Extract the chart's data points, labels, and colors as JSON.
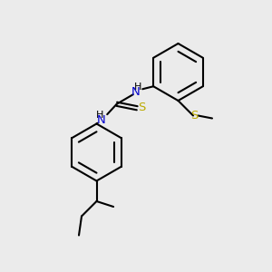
{
  "background_color": "#ebebeb",
  "bond_color": "#000000",
  "N_color": "#0000cc",
  "S_color": "#bbaa00",
  "figsize": [
    3.0,
    3.0
  ],
  "dpi": 100,
  "xlim": [
    0,
    10
  ],
  "ylim": [
    0,
    10
  ]
}
